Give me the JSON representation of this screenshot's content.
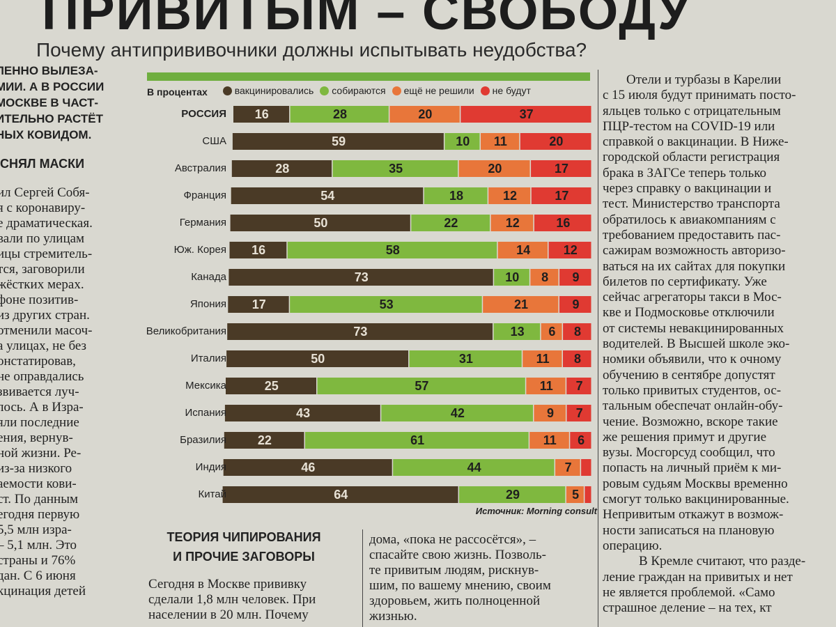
{
  "headline": "ПРИВИТЫМ – СВОБОДУ",
  "subtitle": "Почему антипрививочники должны испытывать неудобства?",
  "left_column": {
    "lead_lines": [
      "ЛЕННО ВЫЛЕЗА-",
      "МИИ. А В РОССИИ",
      "МОСКВЕ В ЧАСТ-",
      "ИТЕЛЬНО РАСТЁТ",
      "НЫХ КОВИДОМ."
    ],
    "heading": "СНЯЛ МАСКИ",
    "body_lines": [
      "ил Сергей Собя-",
      "я с коронавиру-",
      "е драматическая.",
      "вали по улицам",
      "ицы стремитель-",
      "тся, заговорили",
      "жёстких мерах.",
      "фоне позитив-",
      "из других стран.",
      "отменили масоч-",
      "а улицах, не без",
      "онстатировав,",
      "не оправдались",
      "звивается луч-",
      "лось. А в Изра-",
      "яли последние",
      "ения, вернув-",
      "ной жизни. Ре-",
      "из-за низкого",
      "аемости кови-",
      "ст. По данным",
      "егодня первую",
      "5,5 млн изра-",
      "– 5,1 млн. Это",
      "страны и 76%",
      "дан. С 6 июня",
      "кцинация детей"
    ]
  },
  "right_column": {
    "para1_lines": [
      "Отели и турбазы в Карелии",
      "с 15 июля будут принимать посто-",
      "яльцев только с отрицательным",
      "ПЦР-тестом на COVID-19 или",
      "справкой о вакцинации. В Ниже-",
      "городской области регистрация",
      "брака в ЗАГСе теперь только",
      "через справку о вакцинации и",
      "тест. Министерство транспорта",
      "обратилось к авиакомпаниям с",
      "требованием предоставить пас-",
      "сажирам возможность авторизо-",
      "ваться на их сайтах для покупки",
      "билетов по сертификату. Уже",
      "сейчас агрегаторы такси в Мос-",
      "кве и Подмосковье отключили",
      "от системы невакцинированных",
      "водителей. В Высшей школе эко-",
      "номики объявили, что к очному",
      "обучению в сентябре допустят",
      "только привитых студентов, ос-",
      "тальным обеспечат онлайн-обу-",
      "чение. Возможно, вскоре такие",
      "же решения примут и другие",
      "вузы. Мосгорсуд сообщил, что",
      "попасть на личный приём к ми-",
      "ровым судьям Москвы временно",
      "смогут только вакцинированные.",
      "Непривитым откажут в возмож-",
      "ности записаться на плановую",
      "операцию."
    ],
    "para2_lines": [
      "В Кремле считают, что разде-",
      "ление граждан на привитых и нет",
      "не является проблемой. «Само",
      "страшное деление – на тех, кт"
    ]
  },
  "bottom": {
    "heading_lines": [
      "ТЕОРИЯ ЧИПИРОВАНИЯ",
      "И ПРОЧИЕ ЗАГОВОРЫ"
    ],
    "left_lines": [
      "Сегодня в Москве прививку",
      "сделали 1,8 млн человек. При",
      "населении в 20 млн. Почему"
    ],
    "mid_lines": [
      "дома, «пока не рассосётся», –",
      "спасайте свою жизнь. Позволь-",
      "те привитым людям, рискнув-",
      "шим, по вашему мнению, своим",
      "здоровьем, жить полноценной",
      "жизнью."
    ]
  },
  "chart_data": {
    "type": "bar",
    "stacked": true,
    "orientation": "horizontal",
    "unit_label": "В процентах",
    "categories": [
      "РОССИЯ",
      "США",
      "Австралия",
      "Франция",
      "Германия",
      "Юж. Корея",
      "Канада",
      "Япония",
      "Великобритания",
      "Италия",
      "Мексика",
      "Испания",
      "Бразилия",
      "Индия",
      "Китай"
    ],
    "highlight_category": "РОССИЯ",
    "series": [
      {
        "name": "вакцинировались",
        "color": "#4a3a26",
        "values": [
          16,
          59,
          28,
          54,
          50,
          16,
          73,
          17,
          73,
          50,
          25,
          43,
          22,
          46,
          64
        ]
      },
      {
        "name": "собираются",
        "color": "#7fb83f",
        "values": [
          28,
          10,
          35,
          18,
          22,
          58,
          10,
          53,
          13,
          31,
          57,
          42,
          61,
          44,
          29
        ]
      },
      {
        "name": "ещё не решили",
        "color": "#e8763a",
        "values": [
          20,
          11,
          20,
          12,
          12,
          14,
          8,
          21,
          6,
          11,
          11,
          9,
          11,
          7,
          5
        ]
      },
      {
        "name": "не будут",
        "color": "#e03a32",
        "values": [
          37,
          20,
          17,
          17,
          16,
          12,
          9,
          9,
          8,
          8,
          7,
          7,
          6,
          3,
          2
        ]
      }
    ],
    "label_hidden_below": 4,
    "source": "Источник: Morning consult"
  }
}
